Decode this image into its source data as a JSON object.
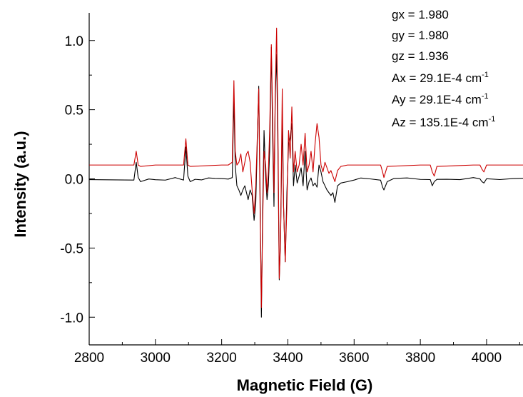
{
  "chart_data": {
    "type": "line",
    "xlabel": "Magnetic Field (G)",
    "ylabel": "Intensity (a.u.)",
    "xlim": [
      2800,
      4110
    ],
    "ylim": [
      -1.2,
      1.2
    ],
    "x_ticks": [
      2800,
      3000,
      3200,
      3400,
      3600,
      3800,
      4000
    ],
    "y_ticks": [
      -1.0,
      -0.5,
      0.0,
      0.5,
      1.0
    ],
    "x_tick_labels": [
      "2800",
      "3000",
      "3200",
      "3400",
      "3600",
      "3800",
      "4000"
    ],
    "y_tick_labels": [
      "-1.0",
      "-0.5",
      "0.0",
      "0.5",
      "1.0"
    ],
    "grid": false,
    "series": [
      {
        "color": "#000000",
        "baseline": 0.0,
        "x": [
          2800,
          2935,
          2942,
          2948,
          2955,
          2980,
          3000,
          3030,
          3060,
          3085,
          3092,
          3098,
          3105,
          3120,
          3140,
          3160,
          3180,
          3200,
          3220,
          3232,
          3237,
          3241,
          3246,
          3252,
          3258,
          3264,
          3270,
          3275,
          3280,
          3286,
          3292,
          3298,
          3303,
          3307,
          3312,
          3316,
          3320,
          3324,
          3328,
          3333,
          3337,
          3341,
          3345,
          3350,
          3354,
          3358,
          3362,
          3366,
          3370,
          3374,
          3378,
          3383,
          3387,
          3392,
          3397,
          3402,
          3407,
          3412,
          3417,
          3422,
          3428,
          3434,
          3440,
          3446,
          3452,
          3458,
          3464,
          3470,
          3476,
          3482,
          3488,
          3494,
          3500,
          3506,
          3512,
          3518,
          3524,
          3530,
          3536,
          3542,
          3550,
          3560,
          3580,
          3600,
          3620,
          3650,
          3680,
          3686,
          3690,
          3700,
          3720,
          3760,
          3800,
          3830,
          3836,
          3842,
          3850,
          3880,
          3920,
          3960,
          3980,
          3986,
          3992,
          4000,
          4040,
          4080,
          4110
        ],
        "values": [
          0.0,
          0.0,
          0.12,
          0.01,
          -0.02,
          0.0,
          0.0,
          -0.01,
          0.0,
          0.0,
          0.23,
          0.02,
          -0.02,
          0.0,
          0.0,
          0.0,
          0.0,
          0.0,
          0.0,
          0.0,
          0.59,
          0.1,
          -0.05,
          -0.08,
          -0.12,
          -0.08,
          -0.05,
          -0.1,
          -0.15,
          -0.08,
          -0.12,
          -0.3,
          -0.18,
          0.2,
          0.67,
          -0.1,
          -1.0,
          -0.2,
          0.35,
          0.0,
          -0.15,
          -0.05,
          0.2,
          0.95,
          0.3,
          -0.2,
          0.6,
          0.9,
          0.2,
          -0.73,
          -0.4,
          0.45,
          -0.2,
          -0.6,
          -0.1,
          0.25,
          0.3,
          0.4,
          -0.05,
          0.1,
          -0.03,
          0.02,
          0.08,
          -0.05,
          0.2,
          -0.08,
          -0.02,
          0.0,
          -0.05,
          -0.03,
          -0.06,
          0.1,
          0.05,
          -0.02,
          -0.05,
          -0.08,
          -0.1,
          -0.12,
          -0.1,
          -0.17,
          -0.05,
          -0.03,
          -0.02,
          -0.01,
          0.0,
          0.0,
          0.0,
          -0.06,
          -0.08,
          -0.02,
          0.0,
          0.0,
          0.0,
          0.0,
          -0.05,
          -0.02,
          0.0,
          0.0,
          0.0,
          0.0,
          0.0,
          -0.02,
          -0.03,
          0.0,
          0.0,
          0.0,
          0.0
        ]
      },
      {
        "color": "#cc0000",
        "baseline": 0.1,
        "x": [
          2800,
          2935,
          2942,
          2948,
          2955,
          3000,
          3085,
          3092,
          3098,
          3105,
          3200,
          3220,
          3232,
          3237,
          3241,
          3246,
          3252,
          3258,
          3264,
          3270,
          3275,
          3280,
          3286,
          3292,
          3298,
          3303,
          3307,
          3312,
          3316,
          3320,
          3324,
          3328,
          3333,
          3337,
          3341,
          3345,
          3350,
          3354,
          3358,
          3362,
          3366,
          3370,
          3374,
          3378,
          3383,
          3387,
          3392,
          3397,
          3402,
          3407,
          3412,
          3417,
          3422,
          3428,
          3434,
          3440,
          3446,
          3452,
          3458,
          3464,
          3470,
          3476,
          3482,
          3488,
          3494,
          3500,
          3506,
          3512,
          3518,
          3524,
          3530,
          3536,
          3542,
          3550,
          3560,
          3580,
          3600,
          3650,
          3680,
          3686,
          3690,
          3700,
          3800,
          3830,
          3836,
          3842,
          3850,
          3960,
          3980,
          3986,
          3992,
          4000,
          4110
        ],
        "values": [
          0.1,
          0.1,
          0.2,
          0.1,
          0.09,
          0.1,
          0.1,
          0.29,
          0.1,
          0.09,
          0.1,
          0.1,
          0.12,
          0.71,
          0.2,
          0.1,
          0.12,
          0.18,
          0.05,
          0.12,
          0.18,
          0.2,
          0.12,
          -0.08,
          -0.25,
          -0.05,
          0.25,
          0.65,
          -0.2,
          -0.93,
          -0.3,
          0.2,
          0.1,
          -0.1,
          0.05,
          0.35,
          0.97,
          0.45,
          -0.1,
          0.65,
          1.09,
          0.35,
          -0.72,
          -0.45,
          0.65,
          -0.2,
          -0.6,
          -0.2,
          0.35,
          0.15,
          0.52,
          0.05,
          0.2,
          0.05,
          0.1,
          0.25,
          0.1,
          0.33,
          0.05,
          0.1,
          0.2,
          0.05,
          0.25,
          0.4,
          0.3,
          0.1,
          0.05,
          0.12,
          0.08,
          0.04,
          0.06,
          0.02,
          -0.02,
          0.06,
          0.09,
          0.1,
          0.1,
          0.1,
          0.1,
          0.05,
          0.01,
          0.09,
          0.1,
          0.1,
          0.05,
          0.02,
          0.09,
          0.1,
          0.1,
          0.07,
          0.05,
          0.1,
          0.1
        ]
      }
    ]
  },
  "annotations": [
    {
      "text": "gx = 1.980",
      "sup": ""
    },
    {
      "text": "gy = 1.980",
      "sup": ""
    },
    {
      "text": "gz = 1.936",
      "sup": ""
    },
    {
      "text": "Ax = 29.1E-4 cm",
      "sup": "-1"
    },
    {
      "text": "Ay = 29.1E-4 cm",
      "sup": "-1"
    },
    {
      "text": "Az = 135.1E-4 cm",
      "sup": "-1"
    }
  ]
}
